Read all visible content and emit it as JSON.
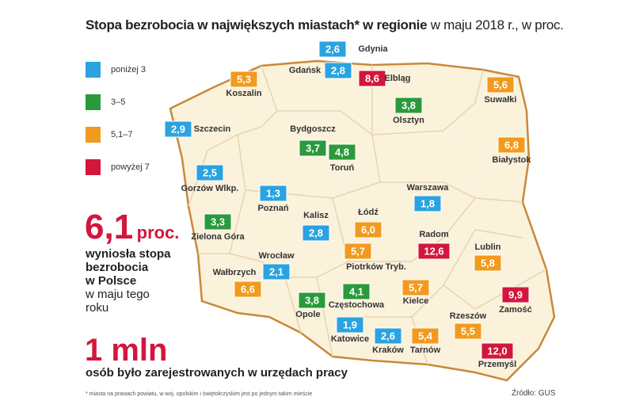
{
  "title": {
    "bold": "Stopa bezrobocia w największych miastach* w regionie",
    "normal": "w maju 2018 r., w proc."
  },
  "legend": [
    {
      "label": "poniżej 3",
      "color": "#2aa3e0"
    },
    {
      "label": "3–5",
      "color": "#2a9a3c"
    },
    {
      "label": "5,1–7",
      "color": "#f29a1e"
    },
    {
      "label": "powyżej 7",
      "color": "#d3163c"
    }
  ],
  "cities": [
    {
      "name": "Gdynia",
      "value": "2,6",
      "color": "#2aa3e0"
    },
    {
      "name": "Gdańsk",
      "value": "2,8",
      "color": "#2aa3e0"
    },
    {
      "name": "Elbląg",
      "value": "8,6",
      "color": "#d3163c"
    },
    {
      "name": "Koszalin",
      "value": "5,3",
      "color": "#f29a1e"
    },
    {
      "name": "Suwałki",
      "value": "5,6",
      "color": "#f29a1e"
    },
    {
      "name": "Olsztyn",
      "value": "3,8",
      "color": "#2a9a3c"
    },
    {
      "name": "Szczecin",
      "value": "2,9",
      "color": "#2aa3e0"
    },
    {
      "name": "Bydgoszcz",
      "value": "3,7",
      "color": "#2a9a3c"
    },
    {
      "name": "Toruń",
      "value": "4,8",
      "color": "#2a9a3c"
    },
    {
      "name": "Białystok",
      "value": "6,8",
      "color": "#f29a1e"
    },
    {
      "name": "Gorzów Wlkp.",
      "value": "2,5",
      "color": "#2aa3e0"
    },
    {
      "name": "Warszawa",
      "value": "1,8",
      "color": "#2aa3e0"
    },
    {
      "name": "Poznań",
      "value": "1,3",
      "color": "#2aa3e0"
    },
    {
      "name": "Kalisz",
      "value": "2,8",
      "color": "#2aa3e0"
    },
    {
      "name": "Łódź",
      "value": "6,0",
      "color": "#f29a1e"
    },
    {
      "name": "Radom",
      "value": "12,6",
      "color": "#d3163c"
    },
    {
      "name": "Zielona Góra",
      "value": "3,3",
      "color": "#2a9a3c"
    },
    {
      "name": "Lublin",
      "value": "5,8",
      "color": "#f29a1e"
    },
    {
      "name": "Piotrków Tryb.",
      "value": "5,7",
      "color": "#f29a1e"
    },
    {
      "name": "Wrocław",
      "value": "2,1",
      "color": "#2aa3e0"
    },
    {
      "name": "Wałbrzych",
      "value": "6,6",
      "color": "#f29a1e"
    },
    {
      "name": "Częstochowa",
      "value": "4,1",
      "color": "#2a9a3c"
    },
    {
      "name": "Kielce",
      "value": "5,7",
      "color": "#f29a1e"
    },
    {
      "name": "Zamość",
      "value": "9,9",
      "color": "#d3163c"
    },
    {
      "name": "Opole",
      "value": "3,8",
      "color": "#2a9a3c"
    },
    {
      "name": "Rzeszów",
      "value": "5,5",
      "color": "#f29a1e"
    },
    {
      "name": "Katowice",
      "value": "1,9",
      "color": "#2aa3e0"
    },
    {
      "name": "Kraków",
      "value": "2,6",
      "color": "#2aa3e0"
    },
    {
      "name": "Tarnów",
      "value": "5,4",
      "color": "#f29a1e"
    },
    {
      "name": "Przemyśl",
      "value": "12,0",
      "color": "#d3163c"
    }
  ],
  "summary": {
    "rate": "6,1",
    "rate_unit": "proc.",
    "rate_text_bold": [
      "wyniosła stopa",
      "bezrobocia",
      "w Polsce"
    ],
    "rate_text": [
      "w maju tego",
      "roku"
    ],
    "count": "1 mln",
    "count_text": "osób było zarejestrowanych w urzędach pracy"
  },
  "footnote": "* miasta na prawach powiatu, w woj. opolskim i świętokrzyskim jest po jednym takim mieście",
  "source": "Źródło: GUS"
}
